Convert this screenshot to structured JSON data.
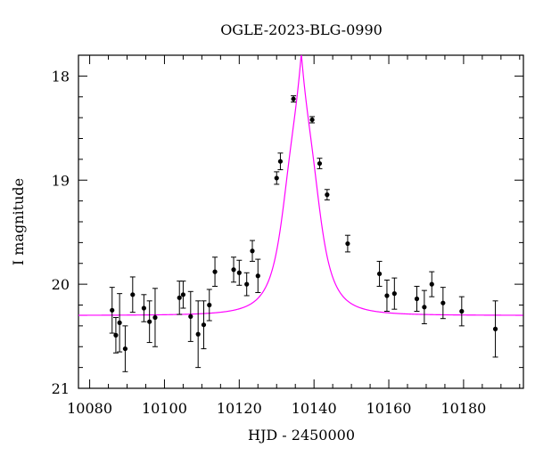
{
  "chart_data": {
    "type": "scatter",
    "title": "OGLE-2023-BLG-0990",
    "xlabel": "HJD - 2450000",
    "ylabel": "I magnitude",
    "xlim": [
      10077,
      10196
    ],
    "ylim": [
      21.0,
      17.8
    ],
    "y_inverted": true,
    "x_ticks": [
      10080,
      10100,
      10120,
      10140,
      10160,
      10180
    ],
    "y_ticks": [
      18,
      19,
      20,
      21
    ],
    "x_minor_step": 5,
    "y_minor_step": 0.2,
    "grid": false,
    "colors": {
      "model": "#ff00ff",
      "points": "#000000"
    },
    "model_curve": {
      "description_visible": false,
      "t0": 10136.6,
      "baseline": 20.3,
      "peak": 17.78,
      "width": 5.2
    },
    "series": [
      {
        "points": [
          {
            "x": 10086.0,
            "y": 20.25,
            "err": 0.22
          },
          {
            "x": 10087.0,
            "y": 20.49,
            "err": 0.17
          },
          {
            "x": 10088.0,
            "y": 20.37,
            "err": 0.28
          },
          {
            "x": 10089.5,
            "y": 20.62,
            "err": 0.22
          },
          {
            "x": 10091.5,
            "y": 20.1,
            "err": 0.17
          },
          {
            "x": 10094.5,
            "y": 20.23,
            "err": 0.13
          },
          {
            "x": 10096.0,
            "y": 20.36,
            "err": 0.2
          },
          {
            "x": 10097.5,
            "y": 20.32,
            "err": 0.28
          },
          {
            "x": 10104.0,
            "y": 20.13,
            "err": 0.16
          },
          {
            "x": 10105.0,
            "y": 20.1,
            "err": 0.13
          },
          {
            "x": 10107.0,
            "y": 20.31,
            "err": 0.24
          },
          {
            "x": 10109.0,
            "y": 20.48,
            "err": 0.32
          },
          {
            "x": 10110.5,
            "y": 20.39,
            "err": 0.23
          },
          {
            "x": 10112.0,
            "y": 20.2,
            "err": 0.15
          },
          {
            "x": 10113.5,
            "y": 19.88,
            "err": 0.14
          },
          {
            "x": 10118.5,
            "y": 19.86,
            "err": 0.12
          },
          {
            "x": 10120.0,
            "y": 19.89,
            "err": 0.12
          },
          {
            "x": 10122.0,
            "y": 20.0,
            "err": 0.11
          },
          {
            "x": 10123.5,
            "y": 19.68,
            "err": 0.1
          },
          {
            "x": 10125.0,
            "y": 19.92,
            "err": 0.16
          },
          {
            "x": 10130.0,
            "y": 18.98,
            "err": 0.06
          },
          {
            "x": 10131.0,
            "y": 18.82,
            "err": 0.08
          },
          {
            "x": 10134.5,
            "y": 18.22,
            "err": 0.03
          },
          {
            "x": 10139.5,
            "y": 18.42,
            "err": 0.03
          },
          {
            "x": 10141.5,
            "y": 18.84,
            "err": 0.05
          },
          {
            "x": 10143.5,
            "y": 19.14,
            "err": 0.05
          },
          {
            "x": 10149.0,
            "y": 19.61,
            "err": 0.08
          },
          {
            "x": 10157.5,
            "y": 19.9,
            "err": 0.12
          },
          {
            "x": 10159.5,
            "y": 20.11,
            "err": 0.15
          },
          {
            "x": 10161.5,
            "y": 20.09,
            "err": 0.15
          },
          {
            "x": 10167.5,
            "y": 20.14,
            "err": 0.12
          },
          {
            "x": 10169.5,
            "y": 20.22,
            "err": 0.16
          },
          {
            "x": 10171.5,
            "y": 20.0,
            "err": 0.12
          },
          {
            "x": 10174.5,
            "y": 20.18,
            "err": 0.15
          },
          {
            "x": 10179.5,
            "y": 20.26,
            "err": 0.14
          },
          {
            "x": 10188.5,
            "y": 20.43,
            "err": 0.27
          }
        ]
      }
    ]
  }
}
